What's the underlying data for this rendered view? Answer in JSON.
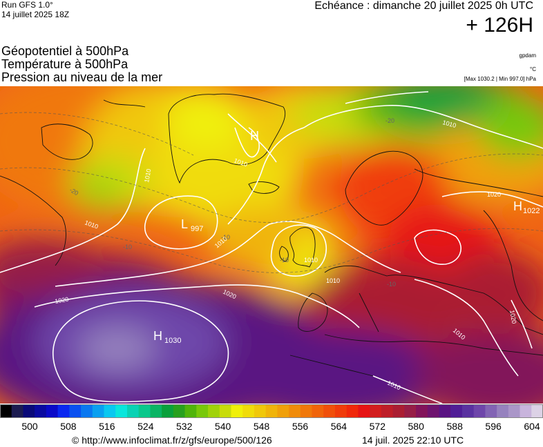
{
  "header": {
    "run_name": "Run GFS 1.0°",
    "run_date": "14 juillet 2025 18Z",
    "valid": "Echéance : dimanche 20 juillet 2025 0h UTC",
    "lead": "+ 126H"
  },
  "titles": {
    "line1": "Géopotentiel à 500hPa",
    "line2": "Température à 500hPa",
    "line3": "Pression au niveau de la mer"
  },
  "units": {
    "geopotential": "gpdam",
    "temperature": "°C",
    "pressure": "[Max 1030.2 | Min 997.0] hPa"
  },
  "map": {
    "centers": [
      {
        "type": "H",
        "value": "1030"
      },
      {
        "type": "L",
        "value": "997"
      },
      {
        "type": "H",
        "value": "1022"
      },
      {
        "type": "H",
        "value": ""
      }
    ],
    "isobar_labels": [
      "1010",
      "1010",
      "1010",
      "1010",
      "1010",
      "1010",
      "1010",
      "1010",
      "1020",
      "1020",
      "1020",
      "1020",
      "1010"
    ],
    "temp_labels": [
      "-20",
      "-10",
      "-10",
      "-20",
      "-10",
      "-10"
    ]
  },
  "scale": {
    "colors": [
      "#000000",
      "#1c1c50",
      "#0a0a78",
      "#0a0aa0",
      "#0a0ac8",
      "#0a28f0",
      "#0a50f0",
      "#0a78f0",
      "#0aa0f0",
      "#0ac8f0",
      "#0ae6dc",
      "#0ad2b4",
      "#0ac88c",
      "#0ab464",
      "#0aa03c",
      "#28a01e",
      "#50b40a",
      "#78c80a",
      "#a0d20a",
      "#c8dc0a",
      "#f0f00a",
      "#f0dc0a",
      "#f0c80a",
      "#f0b40a",
      "#f0a00a",
      "#f08c0a",
      "#f0780a",
      "#f0640a",
      "#f0500a",
      "#f03c0a",
      "#f0280a",
      "#e61414",
      "#d21e1e",
      "#be1e28",
      "#aa1e32",
      "#961e46",
      "#82145a",
      "#6e146e",
      "#5a1482",
      "#501e96",
      "#5a32a0",
      "#6e46aa",
      "#8264b4",
      "#9682be",
      "#aa96c8",
      "#c8b4dc",
      "#dcd2e6"
    ],
    "ticks": [
      "500",
      "508",
      "516",
      "524",
      "532",
      "540",
      "548",
      "556",
      "564",
      "572",
      "580",
      "588",
      "596",
      "604"
    ]
  },
  "footer": {
    "credit": "© http://www.infoclimat.fr/z/gfs/europe/500/126",
    "stamp": "14 juil. 2025 22:10 UTC"
  }
}
